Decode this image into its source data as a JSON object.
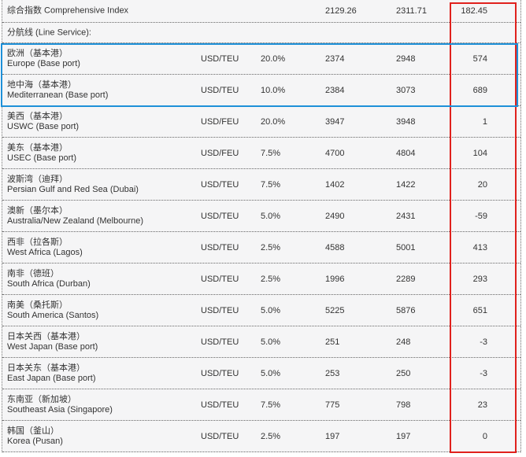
{
  "composite": {
    "label": "综合指数 Comprehensive Index",
    "previous": "2129.26",
    "current": "2311.71",
    "change": "182.45"
  },
  "section_label": "分航线 (Line Service):",
  "routes": [
    {
      "cn": "欧洲（基本港）",
      "en": "Europe (Base port)",
      "unit": "USD/TEU",
      "weight": "20.0%",
      "previous": "2374",
      "current": "2948",
      "change": "574"
    },
    {
      "cn": "地中海（基本港）",
      "en": "Mediterranean (Base port)",
      "unit": "USD/TEU",
      "weight": "10.0%",
      "previous": "2384",
      "current": "3073",
      "change": "689"
    },
    {
      "cn": "美西（基本港）",
      "en": "USWC (Base port)",
      "unit": "USD/FEU",
      "weight": "20.0%",
      "previous": "3947",
      "current": "3948",
      "change": "1"
    },
    {
      "cn": "美东（基本港）",
      "en": "USEC (Base port)",
      "unit": "USD/FEU",
      "weight": "7.5%",
      "previous": "4700",
      "current": "4804",
      "change": "104"
    },
    {
      "cn": "波斯湾（迪拜）",
      "en": "Persian Gulf and Red Sea (Dubai)",
      "unit": "USD/TEU",
      "weight": "7.5%",
      "previous": "1402",
      "current": "1422",
      "change": "20"
    },
    {
      "cn": "澳新（墨尔本）",
      "en": "Australia/New Zealand (Melbourne)",
      "unit": "USD/TEU",
      "weight": "5.0%",
      "previous": "2490",
      "current": "2431",
      "change": "-59"
    },
    {
      "cn": "西非（拉各斯）",
      "en": "West Africa (Lagos)",
      "unit": "USD/TEU",
      "weight": "2.5%",
      "previous": "4588",
      "current": "5001",
      "change": "413"
    },
    {
      "cn": "南非（德班）",
      "en": "South Africa (Durban)",
      "unit": "USD/TEU",
      "weight": "2.5%",
      "previous": "1996",
      "current": "2289",
      "change": "293"
    },
    {
      "cn": "南美（桑托斯）",
      "en": "South America (Santos)",
      "unit": "USD/TEU",
      "weight": "5.0%",
      "previous": "5225",
      "current": "5876",
      "change": "651"
    },
    {
      "cn": "日本关西（基本港）",
      "en": "West Japan (Base port)",
      "unit": "USD/TEU",
      "weight": "5.0%",
      "previous": "251",
      "current": "248",
      "change": "-3"
    },
    {
      "cn": "日本关东（基本港）",
      "en": "East Japan (Base port)",
      "unit": "USD/TEU",
      "weight": "5.0%",
      "previous": "253",
      "current": "250",
      "change": "-3"
    },
    {
      "cn": "东南亚（新加坡）",
      "en": "Southeast Asia (Singapore)",
      "unit": "USD/TEU",
      "weight": "7.5%",
      "previous": "775",
      "current": "798",
      "change": "23"
    },
    {
      "cn": "韩国（釜山）",
      "en": "Korea (Pusan)",
      "unit": "USD/TEU",
      "weight": "2.5%",
      "previous": "197",
      "current": "197",
      "change": "0"
    }
  ],
  "highlight_colors": {
    "change_column": "#e0211d",
    "europe_med_rows": "#1e90d8"
  }
}
